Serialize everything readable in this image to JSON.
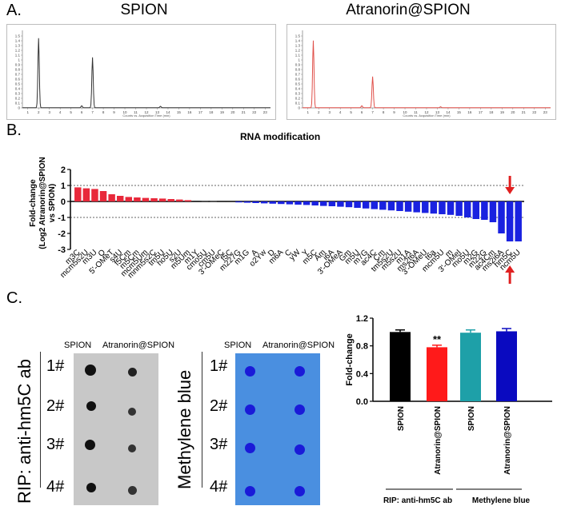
{
  "panels": {
    "a": {
      "letter": "A.",
      "left_title": "SPION",
      "right_title": "Atranorin@SPION",
      "x_axis_caption": "Counts vs. Acquisition Time (min)",
      "x_ticks": [
        "1",
        "2",
        "3",
        "4",
        "5",
        "6",
        "7",
        "8",
        "9",
        "10",
        "11",
        "12",
        "13",
        "14",
        "15",
        "16",
        "17",
        "18",
        "19",
        "20",
        "21",
        "22",
        "23"
      ],
      "y_ticks": [
        "0",
        "0.1",
        "0.2",
        "0.3",
        "0.4",
        "0.5",
        "0.6",
        "0.7",
        "0.8",
        "0.9",
        "1",
        "1.1",
        "1.2",
        "1.3",
        "1.4",
        "1.5"
      ],
      "left_color": "#333333",
      "right_color": "#e0504a",
      "peaks_left": [
        {
          "t": 2.0,
          "h": 1.45
        },
        {
          "t": 6.0,
          "h": 0.04
        },
        {
          "t": 7.0,
          "h": 1.05
        },
        {
          "t": 13.3,
          "h": 0.03
        }
      ],
      "peaks_right": [
        {
          "t": 1.5,
          "h": 1.4
        },
        {
          "t": 6.0,
          "h": 0.04
        },
        {
          "t": 7.0,
          "h": 0.65
        },
        {
          "t": 13.3,
          "h": 0.02
        }
      ]
    },
    "b": {
      "letter": "B.",
      "title": "RNA modification",
      "ylabel_lines": [
        "Fold-change",
        "(Log2 Atranorin@SPION",
        "vs SPION)"
      ],
      "colors": {
        "up": "#e8283a",
        "down": "#1a22e0",
        "neutral": "#333333",
        "arrow": "#e02020"
      }
    },
    "c": {
      "letter": "C.",
      "blot1_headers": [
        "SPION",
        "Atranorin@SPION"
      ],
      "blot2_headers": [
        "SPION",
        "Atranorin@SPION"
      ],
      "row_labels": [
        "1#",
        "2#",
        "3#",
        "4#"
      ],
      "rip_label": "RIP: anti-hm5C ab",
      "mb_label": "Methylene blue",
      "bar_ylabel": "Fold-change",
      "significance": "**",
      "group_labels": [
        "RIP: anti-hm5C ab",
        "Methylene blue"
      ],
      "colors": {
        "blot_bg": "#c8c8c8",
        "mb_bg": "#4a8fe0",
        "mb_spot": "#1a1ad8"
      }
    }
  },
  "chart_data": [
    {
      "type": "bar",
      "title": "RNA modification",
      "xlabel": "",
      "ylabel": "Fold-change (Log2 Atranorin@SPION vs SPION)",
      "ylim": [
        -3,
        2
      ],
      "y_ticks": [
        "2",
        "1",
        "0",
        "-1",
        "-2",
        "-3"
      ],
      "reference_lines": [
        1,
        -1
      ],
      "highlight": "hm5C",
      "categories": [
        "m3C",
        "mcm5s2U",
        "m3U",
        "Q",
        "5'-OMeT",
        "s4U",
        "f5Cm",
        "m5Cm",
        "mcm5Um",
        "mnm5s2C",
        "tm5U",
        "ho5U",
        "s2U",
        "m5Um",
        "m1Y",
        "cmo5U",
        "cm5U",
        "3'-OMeC",
        "f5C",
        "m227G",
        "m1G",
        "A",
        "o2Yw",
        "D",
        "m6A",
        "C",
        "yW",
        "Y",
        "m5C",
        "Am",
        "i6A",
        "3'-OMeA",
        "Gm",
        "m5U",
        "m7G",
        "ac4C",
        "Cm",
        "tm5s2U",
        "m5s2U",
        "m1A",
        "ms2t6A",
        "3'-OMeU",
        "t6a",
        "mcm5U",
        "m",
        "3'-OMeI",
        "mo5U",
        "m2G",
        "m22G",
        "ac4Cm",
        "ms2i6A",
        "hm5C",
        "ncm5U"
      ],
      "values": [
        0.88,
        0.82,
        0.78,
        0.65,
        0.45,
        0.35,
        0.28,
        0.25,
        0.22,
        0.2,
        0.18,
        0.15,
        0.12,
        0.08,
        0.05,
        0.03,
        0.02,
        -0.02,
        -0.04,
        -0.06,
        -0.08,
        -0.1,
        -0.12,
        -0.14,
        -0.16,
        -0.18,
        -0.2,
        -0.22,
        -0.25,
        -0.28,
        -0.3,
        -0.33,
        -0.36,
        -0.4,
        -0.44,
        -0.48,
        -0.52,
        -0.56,
        -0.6,
        -0.64,
        -0.68,
        -0.72,
        -0.76,
        -0.8,
        -0.84,
        -0.9,
        -1.0,
        -1.1,
        -1.15,
        -1.3,
        -2.0,
        -2.5,
        -2.5
      ]
    },
    {
      "type": "bar",
      "title": "",
      "xlabel": "",
      "ylabel": "Fold-change",
      "ylim": [
        0,
        1.2
      ],
      "y_ticks": [
        "0.0",
        "0.4",
        "0.8",
        "1.2"
      ],
      "categories": [
        "SPION",
        "Atranorin@SPION",
        "SPION",
        "Atranorin@SPION"
      ],
      "values": [
        1.0,
        0.78,
        0.99,
        1.01
      ],
      "errors": [
        0.03,
        0.03,
        0.04,
        0.04
      ],
      "colors": [
        "#000000",
        "#ff1a1a",
        "#1ea0a8",
        "#0a0ac0"
      ]
    }
  ]
}
